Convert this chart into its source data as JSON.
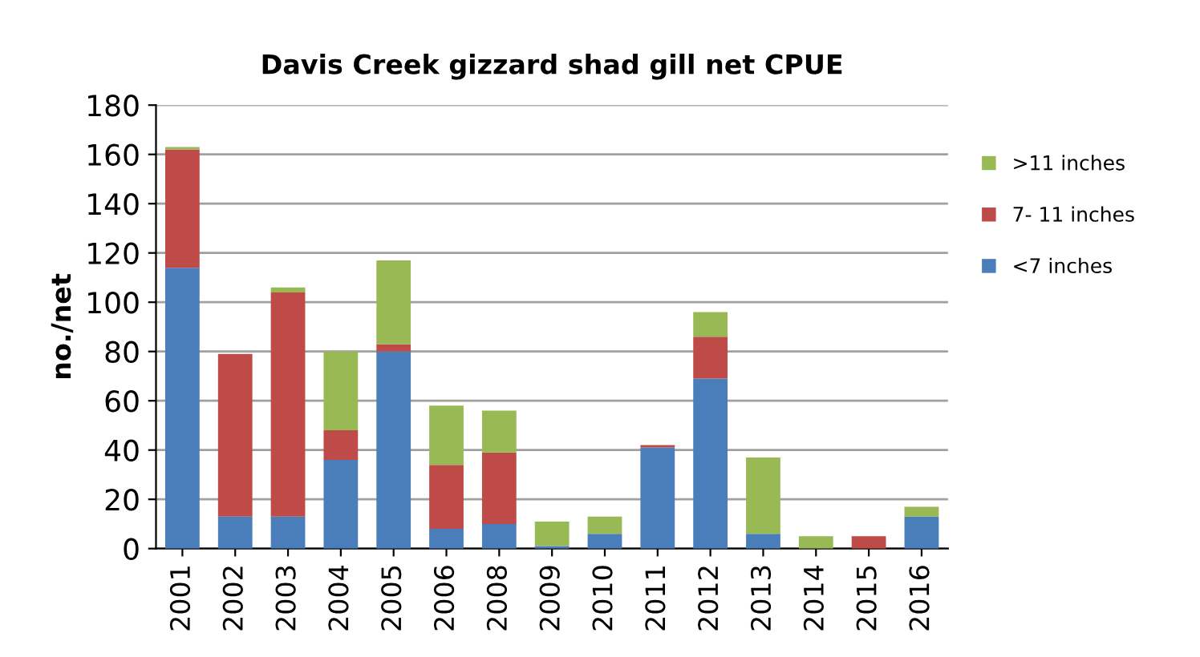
{
  "chart_data": {
    "type": "bar",
    "stacked": true,
    "title": "Davis Creek gizzard shad gill net CPUE",
    "ylabel": "no./net",
    "categories": [
      "2001",
      "2002",
      "2003",
      "2004",
      "2005",
      "2006",
      "2008",
      "2009",
      "2010",
      "2011",
      "2012",
      "2013",
      "2014",
      "2015",
      "2016"
    ],
    "series": [
      {
        "name": "<7 inches",
        "color": "#4a7ebb",
        "values": [
          114,
          13,
          13,
          36,
          80,
          8,
          10,
          1,
          6,
          41,
          69,
          6,
          0,
          0,
          13
        ]
      },
      {
        "name": "7- 11 inches",
        "color": "#be4b48",
        "values": [
          48,
          66,
          91,
          12,
          3,
          26,
          29,
          0,
          0,
          1,
          17,
          0,
          0,
          5,
          0
        ]
      },
      {
        "name": ">11 inches",
        "color": "#98b954",
        "values": [
          1,
          0,
          2,
          32,
          34,
          24,
          17,
          10,
          7,
          0,
          10,
          31,
          5,
          0,
          4
        ]
      }
    ],
    "ylim": [
      0,
      180
    ],
    "yticks": [
      0,
      20,
      40,
      60,
      80,
      100,
      120,
      140,
      160,
      180
    ],
    "grid": "y",
    "legend": "right"
  }
}
